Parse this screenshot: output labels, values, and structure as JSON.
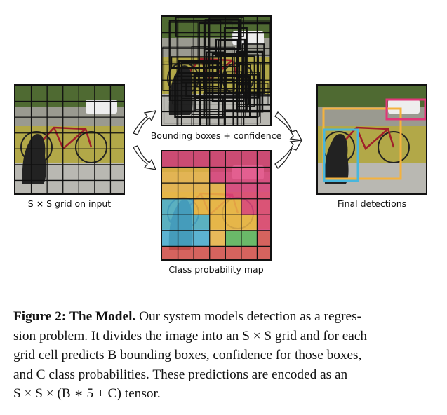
{
  "figure": {
    "panels": {
      "input": {
        "label": "S × S grid on input"
      },
      "boxes": {
        "label": "Bounding boxes + confidence"
      },
      "classmap": {
        "label": "Class probability map",
        "grid": [
          [
            "pink",
            "pink",
            "pink",
            "pink",
            "pink",
            "pink",
            "pink"
          ],
          [
            "yellow",
            "yellow",
            "yellow",
            "pink",
            "pink",
            "pink",
            "pink"
          ],
          [
            "yellow",
            "yellow",
            "yellow",
            "yellow",
            "pink",
            "pink",
            "pink"
          ],
          [
            "blue",
            "blue",
            "yellow",
            "yellow",
            "yellow",
            "pink",
            "pink"
          ],
          [
            "blue",
            "blue",
            "blue",
            "yellow",
            "yellow",
            "yellow",
            "pink"
          ],
          [
            "blue",
            "blue",
            "blue",
            "yellow",
            "green",
            "green",
            "red"
          ],
          [
            "red",
            "red",
            "red",
            "red",
            "red",
            "red",
            "red"
          ]
        ]
      },
      "final": {
        "label": "Final detections"
      }
    },
    "colors": {
      "pink": "#e0457f",
      "yellow": "#eeb84a",
      "blue": "#4bb2d6",
      "green": "#5cb85c",
      "red": "#d9534f",
      "dog_box": "#49b6dc",
      "bike_box": "#f4b23e",
      "car_box": "#e23779"
    },
    "grid_size": 7
  },
  "caption": {
    "figure_label": "Figure 2:",
    "title": "The Model.",
    "line1_rest": " Our system models detection as a regres-",
    "line2": "sion problem. It divides the image into an S × S grid and for each",
    "line3": "grid cell predicts B bounding boxes, confidence for those boxes,",
    "line4": "and C class probabilities.  These predictions are encoded as an",
    "line5": "S × S × (B ∗ 5 + C) tensor."
  }
}
